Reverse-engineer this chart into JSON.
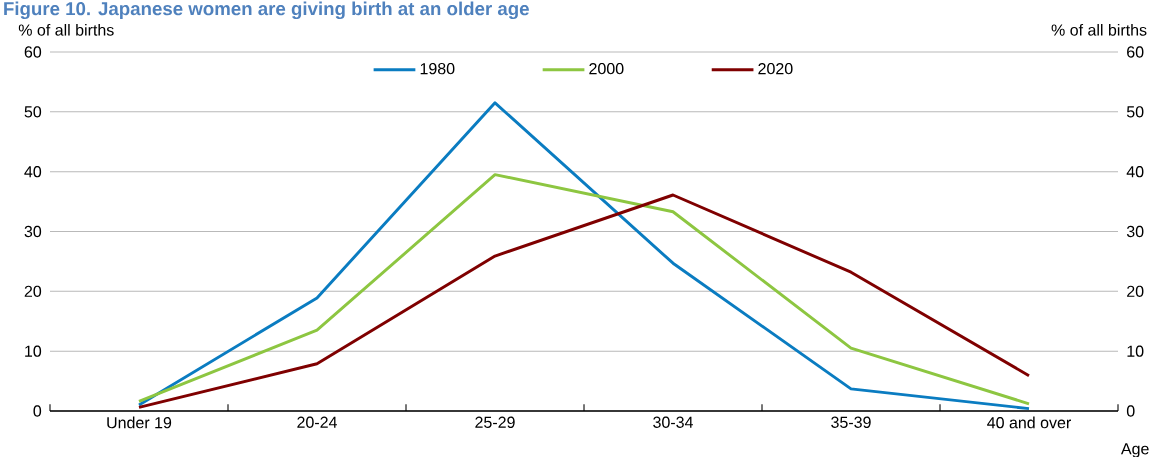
{
  "chart_data": {
    "type": "line",
    "title": "Figure 10. Japanese women are giving birth at an older age",
    "xlabel": "Age",
    "ylabel": "% of all births",
    "y2label": "% of all births",
    "categories": [
      "Under 19",
      "20-24",
      "25-29",
      "30-34",
      "35-39",
      "40 and over"
    ],
    "series": [
      {
        "name": "1980",
        "color": "#0a7cc1",
        "values": [
          1.0,
          18.9,
          51.5,
          24.7,
          3.7,
          0.4
        ]
      },
      {
        "name": "2000",
        "color": "#8dc641",
        "values": [
          1.6,
          13.5,
          39.5,
          33.3,
          10.5,
          1.2
        ]
      },
      {
        "name": "2020",
        "color": "#7f0000",
        "values": [
          0.6,
          7.9,
          25.9,
          36.1,
          23.2,
          5.9
        ]
      }
    ],
    "ylim": [
      0,
      60
    ],
    "yticks": [
      0,
      10,
      20,
      30,
      40,
      50,
      60
    ],
    "y2lim": [
      0,
      60
    ],
    "y2ticks": [
      0,
      10,
      20,
      30,
      40,
      50,
      60
    ],
    "grid": "y",
    "legend": "top",
    "marker": "none",
    "line_style": "solid"
  }
}
